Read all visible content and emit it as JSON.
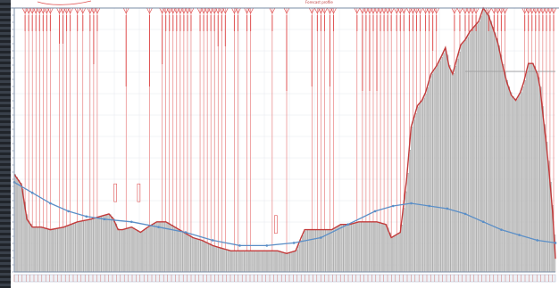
{
  "window": {
    "title_fragment": "Forecast profile"
  },
  "colors": {
    "grid": "#e6e8ee",
    "bar_fill": "#d5d5d5",
    "bar_stroke": "#8f8f8f",
    "marker": "#e05555",
    "trend": "#5b8fc7",
    "axis": "#7a8ca6"
  },
  "chart_data": {
    "type": "area",
    "title": "",
    "xlabel": "",
    "ylabel": "",
    "xlim": [
      0,
      600
    ],
    "ylim": [
      0,
      100
    ],
    "grid": true,
    "series": [
      {
        "kind": "profile",
        "values": [
          [
            0,
            37
          ],
          [
            8,
            33
          ],
          [
            14,
            20
          ],
          [
            20,
            17
          ],
          [
            30,
            17
          ],
          [
            40,
            16
          ],
          [
            55,
            17
          ],
          [
            70,
            19
          ],
          [
            85,
            20
          ],
          [
            95,
            21
          ],
          [
            105,
            22
          ],
          [
            110,
            20
          ],
          [
            115,
            16
          ],
          [
            120,
            16
          ],
          [
            130,
            17
          ],
          [
            140,
            15
          ],
          [
            148,
            17
          ],
          [
            158,
            19
          ],
          [
            168,
            19
          ],
          [
            178,
            17
          ],
          [
            188,
            15
          ],
          [
            198,
            13
          ],
          [
            208,
            12
          ],
          [
            220,
            10
          ],
          [
            230,
            9
          ],
          [
            240,
            8
          ],
          [
            252,
            8
          ],
          [
            262,
            8
          ],
          [
            272,
            8
          ],
          [
            282,
            8
          ],
          [
            292,
            8
          ],
          [
            302,
            7
          ],
          [
            312,
            8
          ],
          [
            318,
            13
          ],
          [
            322,
            16
          ],
          [
            330,
            16
          ],
          [
            340,
            16
          ],
          [
            352,
            16
          ],
          [
            362,
            18
          ],
          [
            372,
            18
          ],
          [
            382,
            19
          ],
          [
            392,
            19
          ],
          [
            402,
            19
          ],
          [
            412,
            18
          ],
          [
            418,
            13
          ],
          [
            428,
            15
          ],
          [
            435,
            35
          ],
          [
            440,
            55
          ],
          [
            447,
            63
          ],
          [
            452,
            65
          ],
          [
            456,
            68
          ],
          [
            462,
            75
          ],
          [
            468,
            78
          ],
          [
            474,
            82
          ],
          [
            478,
            85
          ],
          [
            482,
            78
          ],
          [
            486,
            75
          ],
          [
            490,
            80
          ],
          [
            495,
            86
          ],
          [
            500,
            88
          ],
          [
            505,
            91
          ],
          [
            510,
            93
          ],
          [
            515,
            95
          ],
          [
            520,
            100
          ],
          [
            526,
            97
          ],
          [
            531,
            92
          ],
          [
            536,
            87
          ],
          [
            541,
            79
          ],
          [
            546,
            72
          ],
          [
            551,
            67
          ],
          [
            556,
            65
          ],
          [
            561,
            68
          ],
          [
            565,
            72
          ],
          [
            570,
            79
          ],
          [
            575,
            79
          ],
          [
            580,
            75
          ],
          [
            583,
            70
          ],
          [
            586,
            60
          ],
          [
            590,
            48
          ],
          [
            593,
            38
          ],
          [
            597,
            22
          ],
          [
            600,
            5
          ]
        ]
      },
      {
        "kind": "trend",
        "values": [
          [
            0,
            34
          ],
          [
            20,
            30
          ],
          [
            40,
            26
          ],
          [
            60,
            23
          ],
          [
            80,
            21
          ],
          [
            100,
            20
          ],
          [
            130,
            19
          ],
          [
            160,
            17
          ],
          [
            190,
            15
          ],
          [
            220,
            12
          ],
          [
            250,
            10
          ],
          [
            280,
            10
          ],
          [
            310,
            11
          ],
          [
            340,
            13
          ],
          [
            370,
            18
          ],
          [
            400,
            23
          ],
          [
            420,
            25
          ],
          [
            440,
            26
          ],
          [
            460,
            25
          ],
          [
            480,
            24
          ],
          [
            500,
            22
          ],
          [
            520,
            19
          ],
          [
            540,
            16
          ],
          [
            560,
            14
          ],
          [
            580,
            12
          ],
          [
            600,
            11
          ]
        ]
      }
    ],
    "markers": [
      12,
      16,
      20,
      24,
      28,
      32,
      36,
      40,
      50,
      54,
      58,
      62,
      70,
      76,
      84,
      88,
      92,
      124,
      150,
      164,
      168,
      172,
      176,
      180,
      184,
      188,
      192,
      196,
      206,
      210,
      214,
      218,
      222,
      226,
      230,
      234,
      244,
      248,
      258,
      262,
      286,
      302,
      330,
      336,
      340,
      344,
      350,
      354,
      380,
      386,
      390,
      394,
      398,
      402,
      406,
      410,
      414,
      418,
      424,
      428,
      432,
      438,
      442,
      446,
      450,
      456,
      460,
      464,
      468,
      488,
      494,
      500,
      504,
      508,
      512,
      526,
      532,
      536,
      540,
      544,
      566,
      570,
      574,
      578,
      582,
      586,
      590,
      594,
      598
    ],
    "marker_lengths": {
      "50": 32,
      "54": 32,
      "88": 55,
      "124": 80,
      "150": 80,
      "164": 55,
      "226": 35,
      "234": 35,
      "302": 85,
      "330": 80,
      "350": 80,
      "386": 85,
      "394": 85,
      "402": 85,
      "464": 40
    },
    "annotations": [
      {
        "x": 112,
        "y": 30
      },
      {
        "x": 138,
        "y": 30
      },
      {
        "x": 290,
        "y": 18
      }
    ],
    "reference_line": {
      "y": 76,
      "from": 500,
      "to": 600
    }
  }
}
